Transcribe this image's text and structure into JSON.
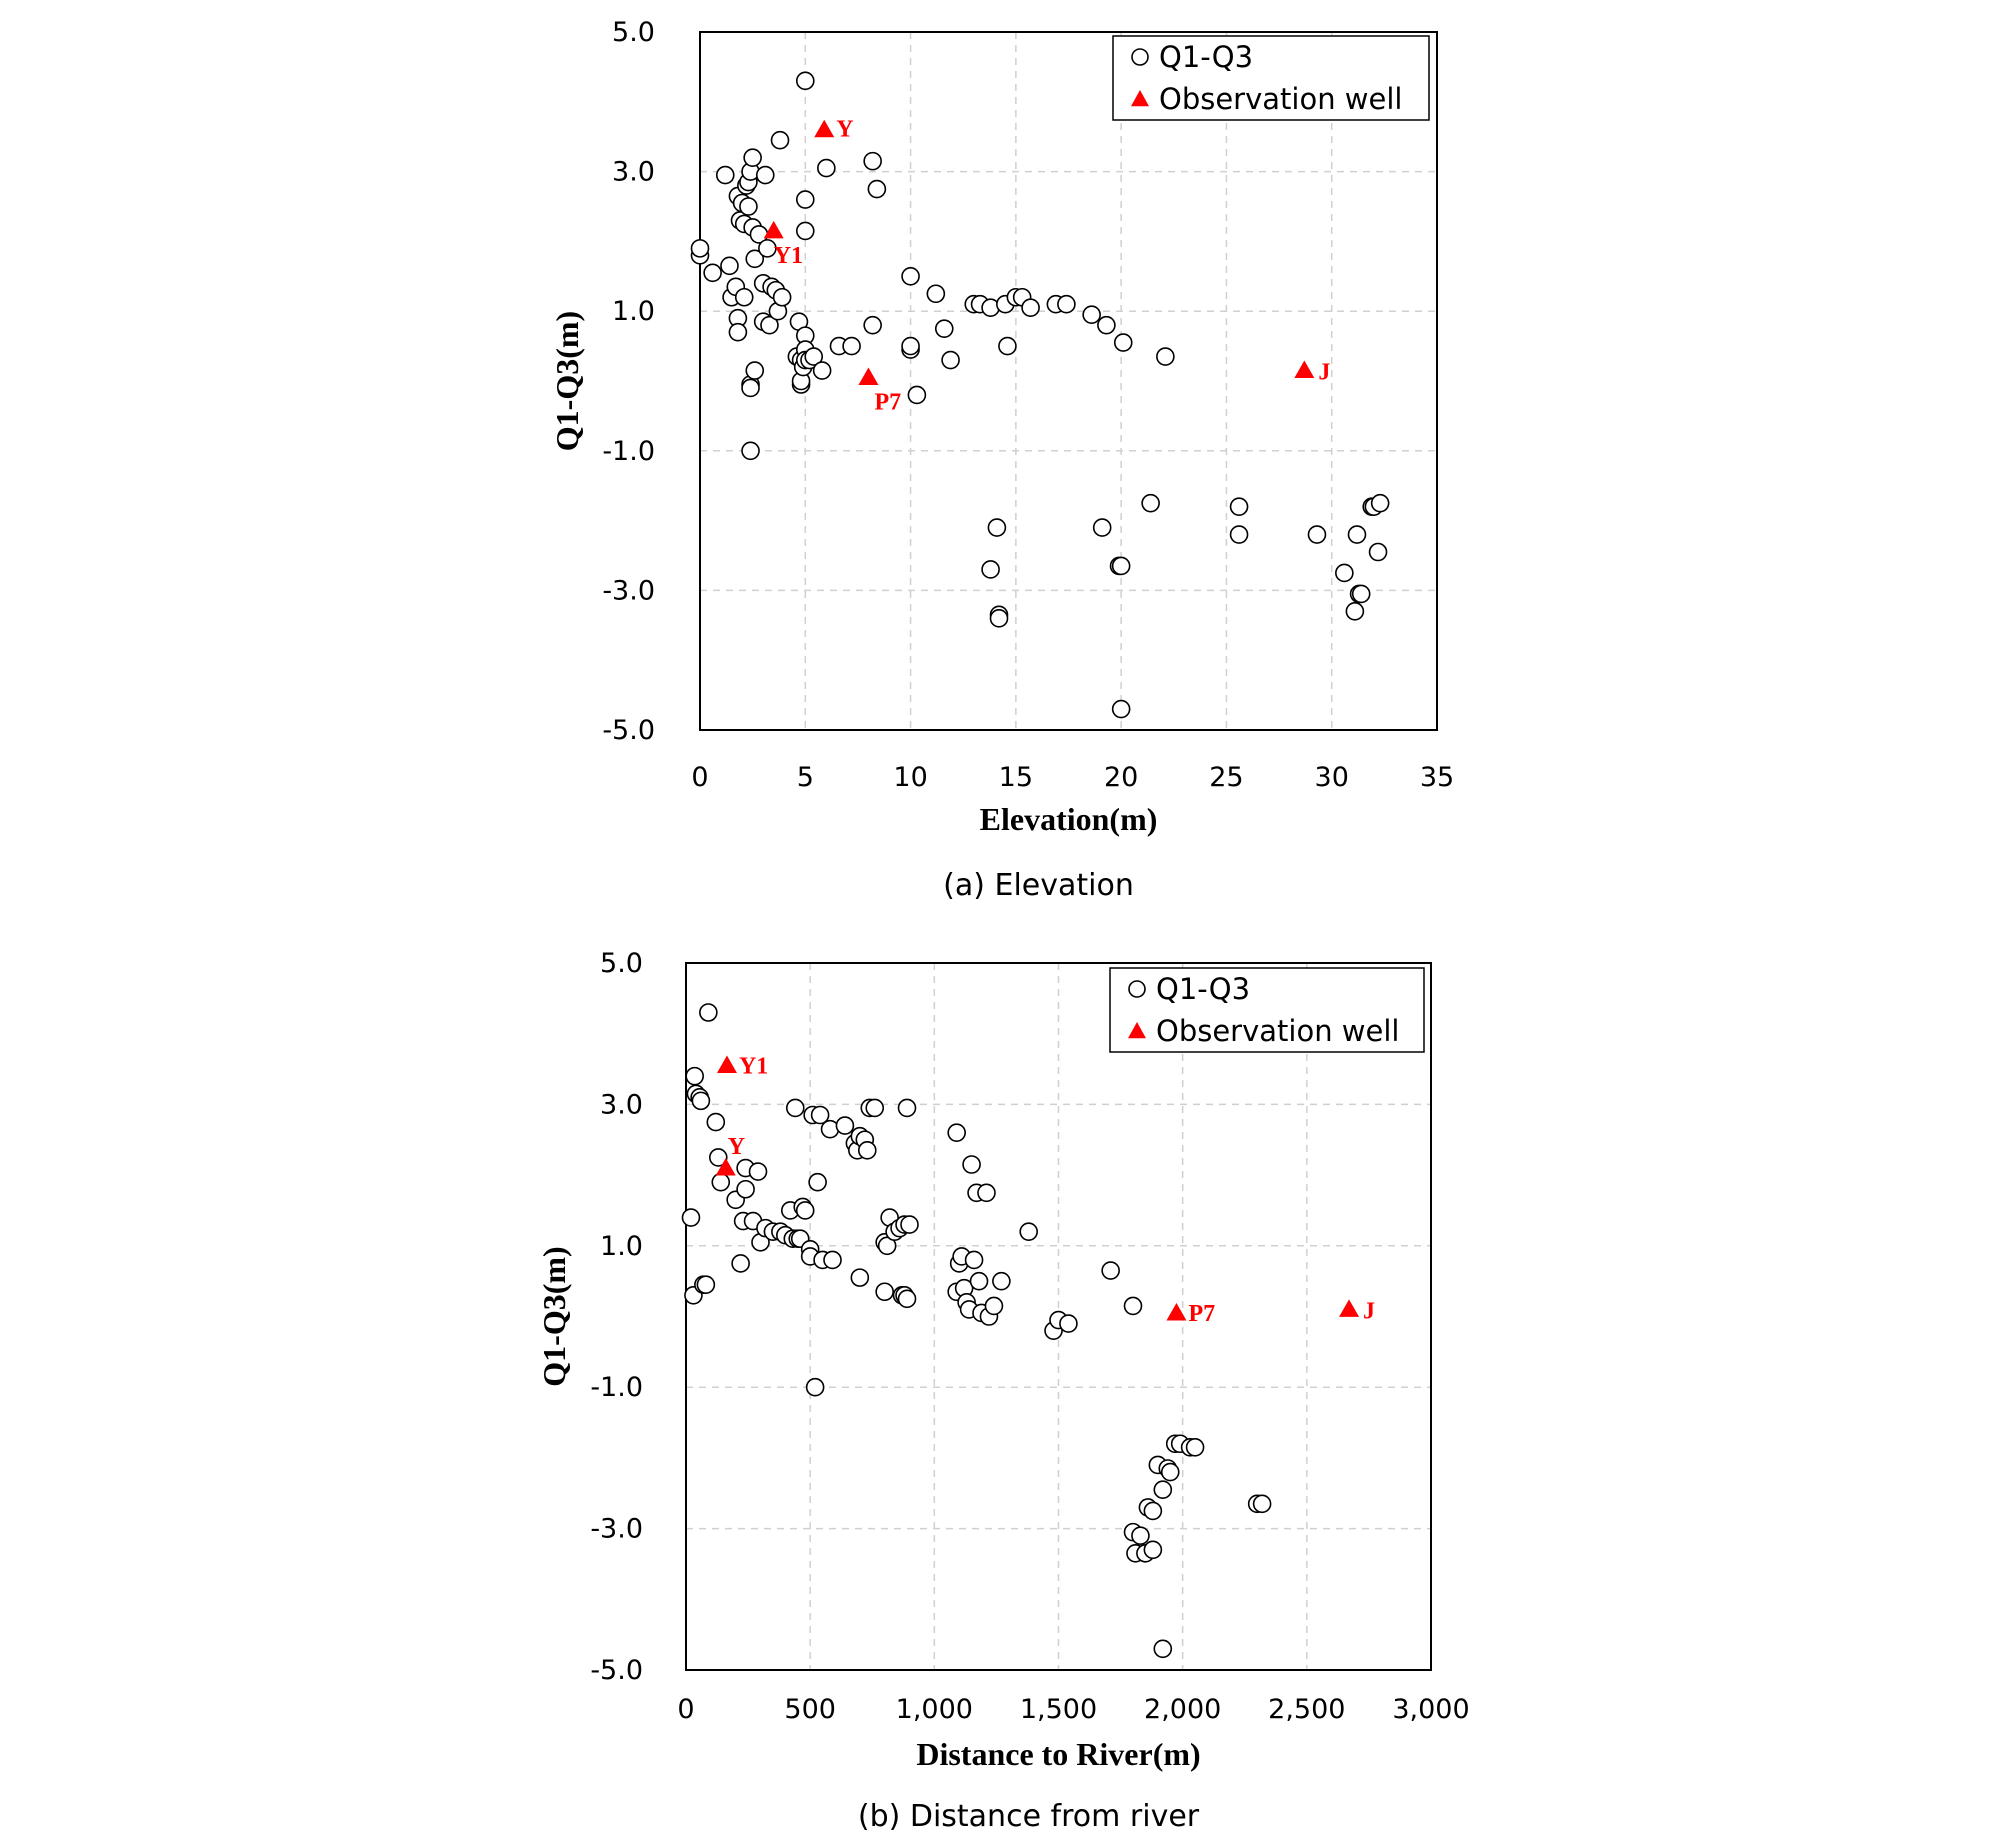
{
  "chart_data": [
    {
      "type": "scatter",
      "caption": "(a) Elevation",
      "xlabel": "Elevation(m)",
      "ylabel": "Q1-Q3(m)",
      "xlim": [
        0,
        35
      ],
      "ylim": [
        -5,
        5
      ],
      "xticks": [
        "0",
        "5",
        "10",
        "15",
        "20",
        "25",
        "30",
        "35"
      ],
      "yticks": [
        "5.0",
        "3.0",
        "1.0",
        "-1.0",
        "-3.0",
        "-5.0"
      ],
      "grid": true,
      "legend_position": "top-right",
      "colors": {
        "points": "#ffffff",
        "point_edge": "#000000",
        "wells": "#ff0000"
      },
      "series": [
        {
          "name": "Q1-Q3",
          "marker": "circle",
          "points": [
            [
              0,
              1.8
            ],
            [
              0,
              1.9
            ],
            [
              0.6,
              1.55
            ],
            [
              1.2,
              2.95
            ],
            [
              1.4,
              1.65
            ],
            [
              1.5,
              1.2
            ],
            [
              1.7,
              1.35
            ],
            [
              1.8,
              2.65
            ],
            [
              1.8,
              0.9
            ],
            [
              1.8,
              0.7
            ],
            [
              1.9,
              2.3
            ],
            [
              2.0,
              2.55
            ],
            [
              2.1,
              2.25
            ],
            [
              2.1,
              1.2
            ],
            [
              2.2,
              2.8
            ],
            [
              2.3,
              2.5
            ],
            [
              2.3,
              2.85
            ],
            [
              2.4,
              3.0
            ],
            [
              2.4,
              -0.05
            ],
            [
              2.4,
              -0.1
            ],
            [
              2.5,
              3.2
            ],
            [
              2.5,
              2.2
            ],
            [
              2.4,
              -1.0
            ],
            [
              2.6,
              0.15
            ],
            [
              2.6,
              1.75
            ],
            [
              2.8,
              2.1
            ],
            [
              3.0,
              1.4
            ],
            [
              3.0,
              0.85
            ],
            [
              3.1,
              2.95
            ],
            [
              3.2,
              1.9
            ],
            [
              3.3,
              0.8
            ],
            [
              3.4,
              1.35
            ],
            [
              3.6,
              1.3
            ],
            [
              3.7,
              1.0
            ],
            [
              3.8,
              3.45
            ],
            [
              3.9,
              1.2
            ],
            [
              4.6,
              0.35
            ],
            [
              4.7,
              0.85
            ],
            [
              4.8,
              0.3
            ],
            [
              4.8,
              -0.05
            ],
            [
              4.8,
              0.0
            ],
            [
              4.9,
              0.2
            ],
            [
              5.0,
              0.65
            ],
            [
              5.0,
              0.45
            ],
            [
              5.0,
              0.3
            ],
            [
              5.0,
              2.6
            ],
            [
              5.0,
              2.15
            ],
            [
              5.0,
              4.3
            ],
            [
              5.2,
              0.3
            ],
            [
              5.4,
              0.35
            ],
            [
              5.8,
              0.15
            ],
            [
              6.0,
              3.05
            ],
            [
              6.6,
              0.5
            ],
            [
              7.2,
              0.5
            ],
            [
              8.2,
              0.8
            ],
            [
              8.2,
              3.15
            ],
            [
              8.4,
              2.75
            ],
            [
              10.0,
              1.5
            ],
            [
              10.0,
              0.45
            ],
            [
              10.0,
              0.5
            ],
            [
              10.3,
              -0.2
            ],
            [
              11.2,
              1.25
            ],
            [
              11.6,
              0.75
            ],
            [
              11.9,
              0.3
            ],
            [
              13.0,
              1.1
            ],
            [
              13.3,
              1.1
            ],
            [
              13.8,
              1.05
            ],
            [
              13.8,
              -2.7
            ],
            [
              14.1,
              -2.1
            ],
            [
              14.2,
              -3.35
            ],
            [
              14.2,
              -3.4
            ],
            [
              14.5,
              1.1
            ],
            [
              14.6,
              0.5
            ],
            [
              15.0,
              1.2
            ],
            [
              15.3,
              1.2
            ],
            [
              15.7,
              1.05
            ],
            [
              16.9,
              1.1
            ],
            [
              17.4,
              1.1
            ],
            [
              18.6,
              0.95
            ],
            [
              19.1,
              -2.1
            ],
            [
              19.3,
              0.8
            ],
            [
              19.9,
              -2.65
            ],
            [
              20.0,
              -2.65
            ],
            [
              20.0,
              -4.7
            ],
            [
              20.1,
              0.55
            ],
            [
              21.4,
              -1.75
            ],
            [
              22.1,
              0.35
            ],
            [
              25.6,
              -1.8
            ],
            [
              25.6,
              -2.2
            ],
            [
              29.3,
              -2.2
            ],
            [
              30.6,
              -2.75
            ],
            [
              31.1,
              -3.3
            ],
            [
              31.2,
              -2.2
            ],
            [
              31.3,
              -3.05
            ],
            [
              31.4,
              -3.05
            ],
            [
              31.9,
              -1.8
            ],
            [
              32.0,
              -1.8
            ],
            [
              32.2,
              -2.45
            ],
            [
              32.3,
              -1.75
            ]
          ]
        },
        {
          "name": "Observation well",
          "marker": "triangle",
          "points": [
            {
              "label": "Y",
              "x": 5.9,
              "y": 3.6
            },
            {
              "label": "Y1",
              "x": 3.5,
              "y": 2.15
            },
            {
              "label": "P7",
              "x": 8.0,
              "y": 0.05
            },
            {
              "label": "J",
              "x": 28.7,
              "y": 0.15
            }
          ]
        }
      ]
    },
    {
      "type": "scatter",
      "caption": "(b) Distance from river",
      "xlabel": "Distance to River(m)",
      "ylabel": "Q1-Q3(m)",
      "xlim": [
        0,
        3000
      ],
      "ylim": [
        -5,
        5
      ],
      "xticks": [
        "0",
        "500",
        "1,000",
        "1,500",
        "2,000",
        "2,500",
        "3,000"
      ],
      "yticks": [
        "5.0",
        "3.0",
        "1.0",
        "-1.0",
        "-3.0",
        "-5.0"
      ],
      "grid": true,
      "legend_position": "top-right",
      "colors": {
        "points": "#ffffff",
        "point_edge": "#000000",
        "wells": "#ff0000"
      },
      "series": [
        {
          "name": "Q1-Q3",
          "marker": "circle",
          "points": [
            [
              20,
              1.4
            ],
            [
              30,
              0.3
            ],
            [
              35,
              3.4
            ],
            [
              40,
              3.15
            ],
            [
              55,
              3.1
            ],
            [
              60,
              3.05
            ],
            [
              70,
              0.45
            ],
            [
              80,
              0.45
            ],
            [
              90,
              4.3
            ],
            [
              120,
              2.75
            ],
            [
              130,
              2.25
            ],
            [
              140,
              1.9
            ],
            [
              200,
              1.65
            ],
            [
              220,
              0.75
            ],
            [
              230,
              1.35
            ],
            [
              240,
              2.1
            ],
            [
              240,
              1.8
            ],
            [
              270,
              1.35
            ],
            [
              290,
              2.05
            ],
            [
              300,
              1.05
            ],
            [
              320,
              1.25
            ],
            [
              350,
              1.2
            ],
            [
              380,
              1.2
            ],
            [
              400,
              1.15
            ],
            [
              420,
              1.5
            ],
            [
              430,
              1.1
            ],
            [
              440,
              2.95
            ],
            [
              450,
              1.1
            ],
            [
              460,
              1.1
            ],
            [
              470,
              1.55
            ],
            [
              480,
              1.5
            ],
            [
              500,
              0.95
            ],
            [
              500,
              0.85
            ],
            [
              510,
              2.85
            ],
            [
              520,
              -1.0
            ],
            [
              530,
              1.9
            ],
            [
              540,
              2.85
            ],
            [
              550,
              0.8
            ],
            [
              580,
              2.65
            ],
            [
              590,
              0.8
            ],
            [
              640,
              2.7
            ],
            [
              680,
              2.45
            ],
            [
              690,
              2.35
            ],
            [
              700,
              2.55
            ],
            [
              700,
              0.55
            ],
            [
              720,
              2.5
            ],
            [
              730,
              2.35
            ],
            [
              740,
              2.95
            ],
            [
              760,
              2.95
            ],
            [
              800,
              0.35
            ],
            [
              800,
              1.05
            ],
            [
              810,
              1.0
            ],
            [
              820,
              1.4
            ],
            [
              840,
              1.2
            ],
            [
              860,
              1.25
            ],
            [
              870,
              0.3
            ],
            [
              880,
              1.3
            ],
            [
              880,
              0.3
            ],
            [
              890,
              2.95
            ],
            [
              890,
              0.25
            ],
            [
              900,
              1.3
            ],
            [
              1090,
              2.6
            ],
            [
              1090,
              0.35
            ],
            [
              1100,
              0.75
            ],
            [
              1110,
              0.85
            ],
            [
              1120,
              0.4
            ],
            [
              1130,
              0.2
            ],
            [
              1140,
              0.1
            ],
            [
              1150,
              2.15
            ],
            [
              1160,
              0.8
            ],
            [
              1170,
              1.75
            ],
            [
              1180,
              0.5
            ],
            [
              1190,
              0.05
            ],
            [
              1210,
              1.75
            ],
            [
              1220,
              0.0
            ],
            [
              1240,
              0.15
            ],
            [
              1270,
              0.5
            ],
            [
              1380,
              1.2
            ],
            [
              1480,
              -0.2
            ],
            [
              1500,
              -0.05
            ],
            [
              1540,
              -0.1
            ],
            [
              1710,
              0.65
            ],
            [
              1800,
              0.15
            ],
            [
              1800,
              -3.05
            ],
            [
              1810,
              -3.35
            ],
            [
              1830,
              -3.1
            ],
            [
              1850,
              -3.35
            ],
            [
              1860,
              -2.7
            ],
            [
              1880,
              -3.3
            ],
            [
              1880,
              -2.75
            ],
            [
              1900,
              -2.1
            ],
            [
              1920,
              -2.45
            ],
            [
              1920,
              -4.7
            ],
            [
              1940,
              -2.15
            ],
            [
              1950,
              -2.2
            ],
            [
              1970,
              -1.8
            ],
            [
              1990,
              -1.8
            ],
            [
              2030,
              -1.85
            ],
            [
              2050,
              -1.85
            ],
            [
              2300,
              -2.65
            ],
            [
              2320,
              -2.65
            ]
          ]
        },
        {
          "name": "Observation well",
          "marker": "triangle",
          "points": [
            {
              "label": "Y1",
              "x": 165,
              "y": 3.55
            },
            {
              "label": "Y",
              "x": 160,
              "y": 2.1
            },
            {
              "label": "P7",
              "x": 1975,
              "y": 0.05
            },
            {
              "label": "J",
              "x": 2670,
              "y": 0.1
            }
          ]
        }
      ]
    }
  ]
}
